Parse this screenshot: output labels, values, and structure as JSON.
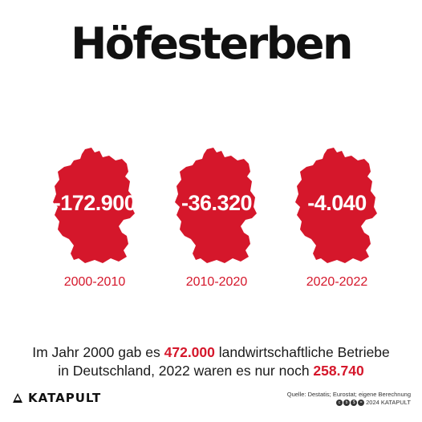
{
  "title": "Höfesterben",
  "maps": [
    {
      "value": "-172.900",
      "period": "2000-2010"
    },
    {
      "value": "-36.320",
      "period": "2010-2020"
    },
    {
      "value": "-4.040",
      "period": "2020-2022"
    }
  ],
  "summary": {
    "line1_a": "Im Jahr 2000 gab es ",
    "line1_hl": "472.000",
    "line1_b": " landwirtschaftliche Betriebe",
    "line2_a": "in Deutschland, 2022 waren es nur noch ",
    "line2_hl": "258.740"
  },
  "footer": {
    "brand": "KATAPULT",
    "source": "Quelle: Destatis; Eurostat; eigene Berechnung",
    "copyright": "2024 KATAPULT"
  },
  "colors": {
    "accent": "#d5172b",
    "text": "#111111"
  }
}
